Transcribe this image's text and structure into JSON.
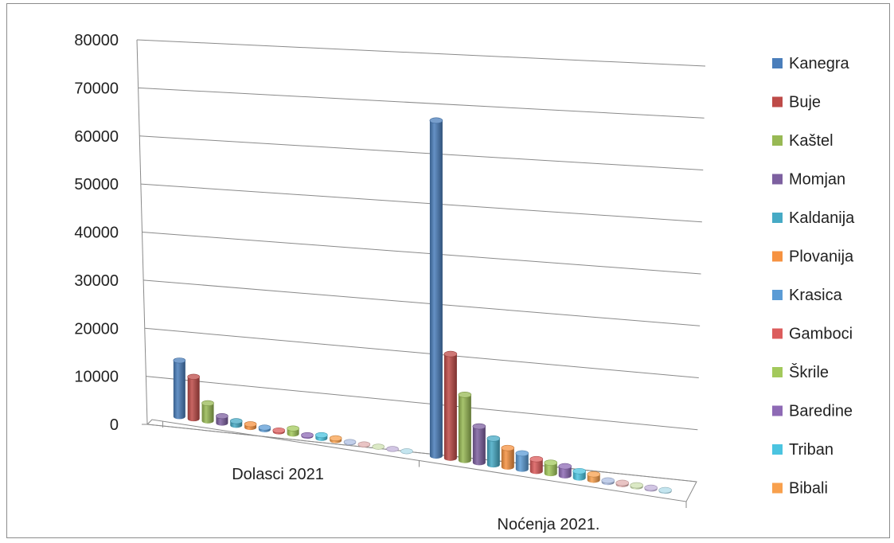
{
  "chart_data": {
    "type": "bar",
    "style": "3d-cylinder",
    "categories": [
      "Dolasci 2021",
      "Noćenja 2021."
    ],
    "ylim": [
      0,
      80000
    ],
    "yticks": [
      "0",
      "10000",
      "20000",
      "30000",
      "40000",
      "50000",
      "60000",
      "70000",
      "80000"
    ],
    "grid": true,
    "legend_position": "right",
    "series": [
      {
        "name": "Kanegra",
        "color": "#4a7ebb",
        "values": [
          12000,
          74000
        ]
      },
      {
        "name": "Buje",
        "color": "#be4b48",
        "values": [
          9000,
          23000
        ]
      },
      {
        "name": "Kaštel",
        "color": "#98b954",
        "values": [
          3800,
          14500
        ]
      },
      {
        "name": "Momjan",
        "color": "#7d60a0",
        "values": [
          1500,
          8000
        ]
      },
      {
        "name": "Kaldanija",
        "color": "#46aac5",
        "values": [
          900,
          5800
        ]
      },
      {
        "name": "Plovanija",
        "color": "#f69240",
        "values": [
          700,
          4200
        ]
      },
      {
        "name": "Krasica",
        "color": "#5b9bd5",
        "values": [
          450,
          3500
        ]
      },
      {
        "name": "Gamboci",
        "color": "#dc5c5c",
        "values": [
          300,
          2700
        ]
      },
      {
        "name": "Škrile",
        "color": "#a3c95c",
        "values": [
          1200,
          2400
        ]
      },
      {
        "name": "Baredine",
        "color": "#8e6ab5",
        "values": [
          220,
          2100
        ]
      },
      {
        "name": "Triban",
        "color": "#4bc4e0",
        "values": [
          700,
          1500
        ]
      },
      {
        "name": "Bibali",
        "color": "#f8a04d",
        "values": [
          500,
          1300
        ]
      },
      {
        "name": "",
        "color": "#aebfe3",
        "values": [
          150,
          400
        ]
      },
      {
        "name": "",
        "color": "#e2b0b0",
        "values": [
          110,
          350
        ]
      },
      {
        "name": "",
        "color": "#cfe1b2",
        "values": [
          80,
          300
        ]
      },
      {
        "name": "",
        "color": "#c2b2d9",
        "values": [
          60,
          250
        ]
      },
      {
        "name": "",
        "color": "#b0dcea",
        "values": [
          40,
          200
        ]
      }
    ]
  }
}
